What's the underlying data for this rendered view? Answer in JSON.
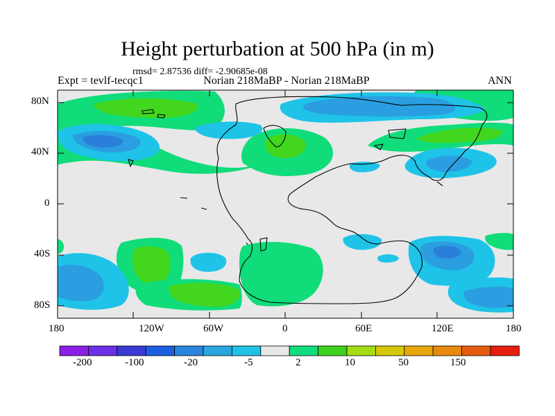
{
  "title": "Height perturbation at 500 hPa (in m)",
  "stats": "rmsd= 2.87536 diff= -2.90685e-08",
  "subtitle_left": "Expt = tevlf-tecqc1",
  "subtitle_center": "Norian 218MaBP - Norian 218MaBP",
  "subtitle_right": "ANN",
  "lat_labels": [
    "80N",
    "40N",
    "0",
    "40S",
    "80S"
  ],
  "lon_labels": [
    "180",
    "120W",
    "60W",
    "0",
    "60E",
    "120E",
    "180"
  ],
  "colorbar": {
    "colors": [
      "#8a1ee6",
      "#6a2fe6",
      "#3a3ad6",
      "#1e5ee0",
      "#2a84dc",
      "#2aa6e0",
      "#20c2e6",
      "#e8e8e8",
      "#12dc7c",
      "#3ed21e",
      "#a6dc14",
      "#d6c808",
      "#e6a60c",
      "#e68a10",
      "#e65a10",
      "#e61e10"
    ],
    "labels": [
      "-200",
      "-100",
      "-20",
      "-5",
      "2",
      "10",
      "50",
      "150"
    ]
  },
  "map_colors": {
    "background": "#e8e8e8",
    "neg_light": "#1fc3e8",
    "neg_mid": "#2a9ee0",
    "neg_dark": "#2a7fdb",
    "pos_light": "#10dc7a",
    "pos_mid": "#42d61e"
  }
}
